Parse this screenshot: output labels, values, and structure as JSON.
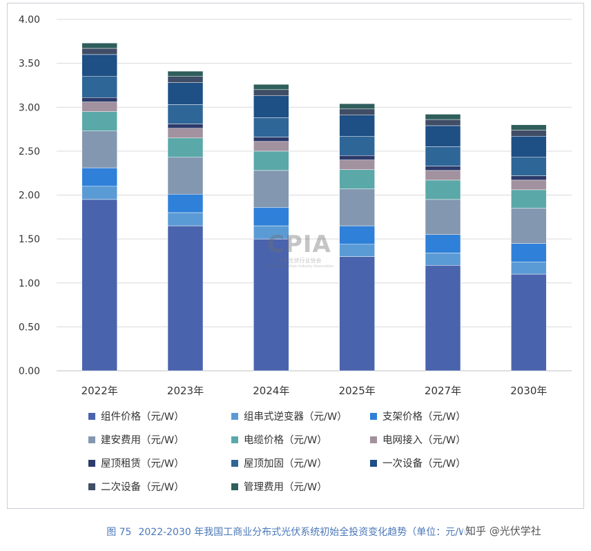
{
  "caption": {
    "figure_no": "图 75",
    "text": "2022-2030 年我国工商业分布式光伏系统初始全投资变化趋势（单位：元/W）",
    "overlay": "知乎 @光伏学社"
  },
  "watermark": {
    "logo": "CPIA",
    "org": "中国光伏行业协会",
    "org_en": "China Photovoltaic Industry Association"
  },
  "chart_data": {
    "type": "bar",
    "stacked": true,
    "title": "",
    "xlabel": "",
    "ylabel": "",
    "ylim": [
      0,
      4.0
    ],
    "yticks": [
      "0.00",
      "0.50",
      "1.00",
      "1.50",
      "2.00",
      "2.50",
      "3.00",
      "3.50",
      "4.00"
    ],
    "grid": true,
    "legend_position": "bottom",
    "categories": [
      "2022年",
      "2023年",
      "2024年",
      "2025年",
      "2027年",
      "2030年"
    ],
    "series": [
      {
        "name": "组件价格（元/W）",
        "color": "#4a63ad",
        "values": [
          1.95,
          1.65,
          1.5,
          1.3,
          1.2,
          1.1
        ]
      },
      {
        "name": "组串式逆变器（元/W）",
        "color": "#5b9bd5",
        "values": [
          0.15,
          0.15,
          0.15,
          0.14,
          0.14,
          0.14
        ]
      },
      {
        "name": "支架价格（元/W）",
        "color": "#2f80d8",
        "values": [
          0.21,
          0.21,
          0.21,
          0.21,
          0.21,
          0.21
        ]
      },
      {
        "name": "建安费用（元/W）",
        "color": "#8497b0",
        "values": [
          0.42,
          0.42,
          0.42,
          0.42,
          0.4,
          0.4
        ]
      },
      {
        "name": "电缆价格（元/W）",
        "color": "#5ba8a8",
        "values": [
          0.22,
          0.22,
          0.22,
          0.22,
          0.22,
          0.21
        ]
      },
      {
        "name": "电网接入（元/W）",
        "color": "#a2919e",
        "values": [
          0.11,
          0.11,
          0.11,
          0.11,
          0.11,
          0.11
        ]
      },
      {
        "name": "屋顶租赁（元/W）",
        "color": "#2d3b6b",
        "values": [
          0.05,
          0.05,
          0.05,
          0.05,
          0.05,
          0.05
        ]
      },
      {
        "name": "屋顶加固（元/W）",
        "color": "#2e6697",
        "values": [
          0.24,
          0.22,
          0.22,
          0.22,
          0.22,
          0.21
        ]
      },
      {
        "name": "一次设备（元/W）",
        "color": "#1e4f85",
        "values": [
          0.25,
          0.25,
          0.25,
          0.24,
          0.24,
          0.24
        ]
      },
      {
        "name": "二次设备（元/W）",
        "color": "#404d66",
        "values": [
          0.07,
          0.07,
          0.07,
          0.07,
          0.07,
          0.07
        ]
      },
      {
        "name": "管理费用（元/W）",
        "color": "#2f5e5c",
        "values": [
          0.06,
          0.06,
          0.06,
          0.06,
          0.06,
          0.06
        ]
      }
    ]
  }
}
